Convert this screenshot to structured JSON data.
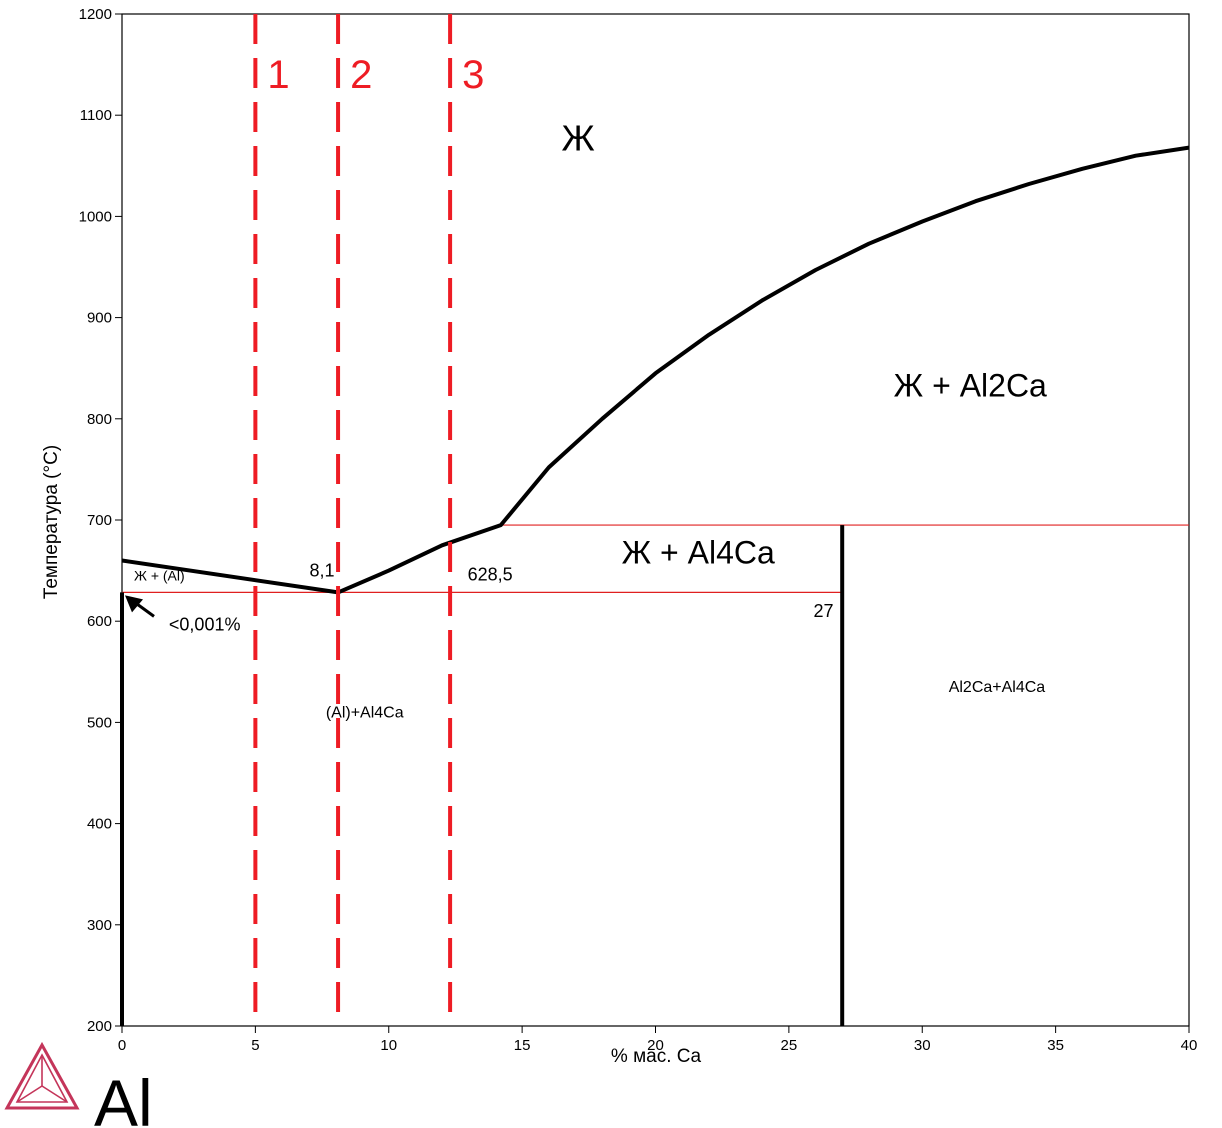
{
  "chart_data": {
    "type": "line",
    "xlabel": "% мас. Ca",
    "ylabel": "Температура (°C)",
    "xlim": [
      0,
      40
    ],
    "ylim": [
      200,
      1200
    ],
    "x_ticks": [
      0,
      5,
      10,
      15,
      20,
      25,
      30,
      35,
      40
    ],
    "y_ticks": [
      200,
      300,
      400,
      500,
      600,
      700,
      800,
      900,
      1000,
      1100,
      1200
    ],
    "liquidus_left": {
      "x": [
        0,
        8.1
      ],
      "y": [
        660,
        628.5
      ]
    },
    "liquidus_right": {
      "x": [
        8.1,
        10,
        12,
        14.2,
        16,
        18,
        20,
        22,
        24,
        26,
        28,
        30,
        32,
        34,
        36,
        38,
        40
      ],
      "y": [
        628.5,
        650,
        675,
        695,
        752,
        800,
        845,
        883,
        917,
        947,
        973,
        995,
        1015,
        1032,
        1047,
        1060,
        1068
      ]
    },
    "solvus_al": {
      "x": [
        0,
        0
      ],
      "y": [
        200,
        628.5
      ]
    },
    "al4ca_phase": {
      "x": [
        27,
        27
      ],
      "y": [
        200,
        695
      ]
    },
    "eutectic_line": {
      "x": [
        0,
        27
      ],
      "y": [
        628.5,
        628.5
      ]
    },
    "peritectic_line": {
      "x": [
        14.2,
        40
      ],
      "y": [
        695,
        695
      ]
    },
    "dashed_lines": [
      {
        "x": 5,
        "label": "1"
      },
      {
        "x": 8.1,
        "label": "2"
      },
      {
        "x": 12.3,
        "label": "3"
      }
    ],
    "region_labels": [
      {
        "text": "Ж",
        "x": 17.1,
        "y": 1065
      },
      {
        "text": "Ж + Al2Ca",
        "x": 31.8,
        "y": 822
      },
      {
        "text": "Ж +  Al4Ca",
        "x": 21.6,
        "y": 657
      },
      {
        "text": "Ж + (Al)",
        "x": 1.4,
        "y": 640
      },
      {
        "text": "(Al)+Al4Ca",
        "x": 9.1,
        "y": 505
      },
      {
        "text": "Al2Ca+Al4Ca",
        "x": 32.8,
        "y": 530
      }
    ],
    "annotations": [
      {
        "text": "8,1",
        "x": 7.5,
        "y": 644
      },
      {
        "text": "628,5",
        "x": 13.8,
        "y": 640
      },
      {
        "text": "27",
        "x": 26.3,
        "y": 604
      },
      {
        "text": "<0,001%",
        "x": 3.1,
        "y": 591
      }
    ],
    "colors": {
      "phase_line": "#000000",
      "dash": "#ee1c24",
      "thin": "#e02020"
    }
  },
  "logo": {
    "text": "Al",
    "color": "#c4355a"
  }
}
